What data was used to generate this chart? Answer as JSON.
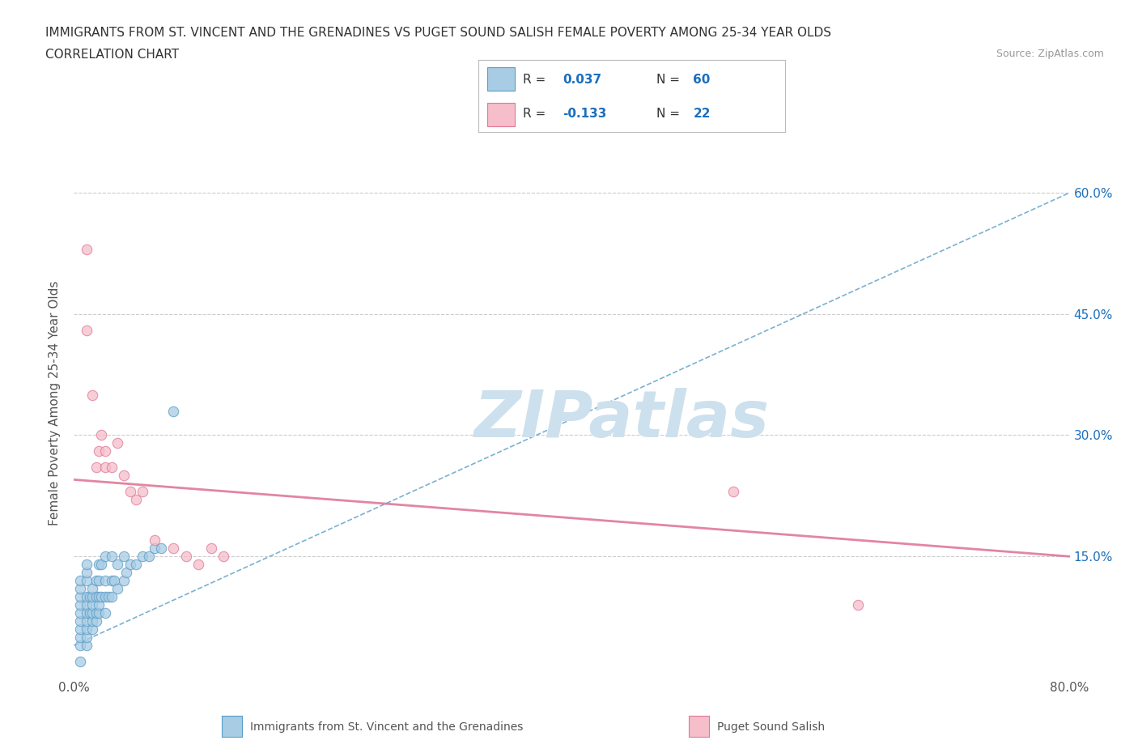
{
  "title_line1": "IMMIGRANTS FROM ST. VINCENT AND THE GRENADINES VS PUGET SOUND SALISH FEMALE POVERTY AMONG 25-34 YEAR OLDS",
  "title_line2": "CORRELATION CHART",
  "source_text": "Source: ZipAtlas.com",
  "ylabel": "Female Poverty Among 25-34 Year Olds",
  "xlim": [
    0.0,
    0.8
  ],
  "ylim": [
    0.0,
    0.68
  ],
  "y_ticks_right": [
    0.15,
    0.3,
    0.45,
    0.6
  ],
  "y_tick_labels_right": [
    "15.0%",
    "30.0%",
    "45.0%",
    "60.0%"
  ],
  "blue_color": "#a8cce4",
  "blue_edge": "#5a9dc8",
  "pink_color": "#f5beca",
  "pink_edge": "#e07898",
  "grid_color": "#cccccc",
  "grid_style": "--",
  "watermark_color": "#cde0ed",
  "watermark_text": "ZIPatlas",
  "legend_text_color": "#1a6fbd",
  "legend_label_color": "#333333",
  "blue_scatter_x": [
    0.005,
    0.005,
    0.005,
    0.005,
    0.005,
    0.005,
    0.005,
    0.005,
    0.005,
    0.005,
    0.01,
    0.01,
    0.01,
    0.01,
    0.01,
    0.01,
    0.01,
    0.01,
    0.01,
    0.01,
    0.013,
    0.013,
    0.015,
    0.015,
    0.015,
    0.015,
    0.015,
    0.015,
    0.018,
    0.018,
    0.018,
    0.018,
    0.02,
    0.02,
    0.02,
    0.02,
    0.02,
    0.022,
    0.022,
    0.025,
    0.025,
    0.025,
    0.025,
    0.028,
    0.03,
    0.03,
    0.03,
    0.032,
    0.035,
    0.035,
    0.04,
    0.04,
    0.042,
    0.045,
    0.05,
    0.055,
    0.06,
    0.065,
    0.07,
    0.08
  ],
  "blue_scatter_y": [
    0.02,
    0.04,
    0.05,
    0.06,
    0.07,
    0.08,
    0.09,
    0.1,
    0.11,
    0.12,
    0.04,
    0.05,
    0.06,
    0.07,
    0.08,
    0.09,
    0.1,
    0.12,
    0.13,
    0.14,
    0.08,
    0.1,
    0.06,
    0.07,
    0.08,
    0.09,
    0.1,
    0.11,
    0.07,
    0.08,
    0.1,
    0.12,
    0.08,
    0.09,
    0.1,
    0.12,
    0.14,
    0.1,
    0.14,
    0.08,
    0.1,
    0.12,
    0.15,
    0.1,
    0.1,
    0.12,
    0.15,
    0.12,
    0.11,
    0.14,
    0.12,
    0.15,
    0.13,
    0.14,
    0.14,
    0.15,
    0.15,
    0.16,
    0.16,
    0.33
  ],
  "pink_scatter_x": [
    0.01,
    0.01,
    0.015,
    0.018,
    0.02,
    0.022,
    0.025,
    0.025,
    0.03,
    0.035,
    0.04,
    0.045,
    0.05,
    0.055,
    0.065,
    0.08,
    0.09,
    0.1,
    0.11,
    0.12,
    0.53,
    0.63
  ],
  "pink_scatter_y": [
    0.53,
    0.43,
    0.35,
    0.26,
    0.28,
    0.3,
    0.26,
    0.28,
    0.26,
    0.29,
    0.25,
    0.23,
    0.22,
    0.23,
    0.17,
    0.16,
    0.15,
    0.14,
    0.16,
    0.15,
    0.23,
    0.09
  ],
  "blue_trend_x": [
    0.0,
    0.8
  ],
  "blue_trend_y": [
    0.04,
    0.6
  ],
  "pink_trend_x": [
    0.0,
    0.8
  ],
  "pink_trend_y": [
    0.245,
    0.15
  ]
}
